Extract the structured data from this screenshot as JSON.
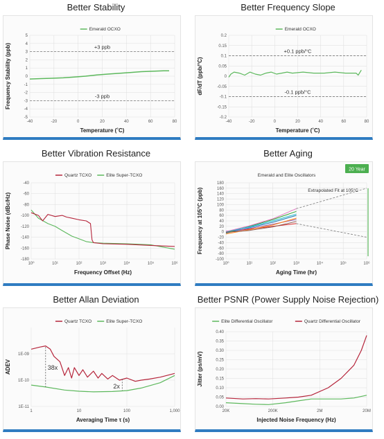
{
  "colors": {
    "green": "#5cb85c",
    "red": "#b5243a",
    "accent": "#2f7cc1",
    "grid": "#dddddd",
    "dash": "#888888"
  },
  "chart_data": [
    {
      "type": "line",
      "title": "Better Stability",
      "xlabel": "Temperature (˚C)",
      "ylabel": "Frequency Stability (ppb)",
      "xlim": [
        -40,
        90
      ],
      "ylim": [
        -5,
        5
      ],
      "xticks": [
        "-40",
        "-20",
        "0",
        "20",
        "40",
        "60",
        "80"
      ],
      "yticks": [
        "-5",
        "-4",
        "-3",
        "-2",
        "-1",
        "0",
        "1",
        "2",
        "3",
        "4",
        "5"
      ],
      "legend": "top-center",
      "series": [
        {
          "name": "Emerald OCXO",
          "x": [
            -40,
            -30,
            -20,
            -10,
            0,
            10,
            20,
            30,
            40,
            50,
            60,
            70,
            80,
            85
          ],
          "y": [
            -0.35,
            -0.3,
            -0.25,
            -0.2,
            -0.1,
            0,
            0.15,
            0.25,
            0.35,
            0.45,
            0.55,
            0.6,
            0.65,
            0.65
          ]
        }
      ],
      "annotations": [
        "+3 ppb",
        "-3 ppb"
      ]
    },
    {
      "type": "line",
      "title": "Better Frequency Slope",
      "xlabel": "Temperature (˚C)",
      "ylabel": "dF/dT (ppb/°C)",
      "xlim": [
        -40,
        90
      ],
      "ylim": [
        -0.2,
        0.2
      ],
      "xticks": [
        "-40",
        "-20",
        "0",
        "20",
        "40",
        "60",
        "80"
      ],
      "yticks": [
        "-0.2",
        "-0.15",
        "-0.1",
        "-0.05",
        "0",
        "0.05",
        "0.1",
        "0.15",
        "0.2"
      ],
      "legend": "top-center",
      "series": [
        {
          "name": "Emerald OCXO",
          "x": [
            -40,
            -38,
            -35,
            -30,
            -25,
            -20,
            -15,
            -10,
            -5,
            0,
            5,
            10,
            15,
            20,
            30,
            40,
            50,
            60,
            70,
            80,
            82,
            85
          ],
          "y": [
            -0.005,
            0.01,
            0.02,
            0.015,
            0.005,
            0.02,
            0.01,
            0.005,
            0.015,
            0.02,
            0.01,
            0.015,
            0.02,
            0.015,
            0.02,
            0.015,
            0.015,
            0.02,
            0.015,
            0.015,
            0.005,
            0.03
          ]
        }
      ],
      "annotations": [
        "+0.1 ppb/°C",
        "-0.1 ppb/°C"
      ]
    },
    {
      "type": "line",
      "title": "Better Vibration Resistance",
      "xlabel": "Frequency Offset (Hz)",
      "ylabel": "Phase Noise (dBc/Hz)",
      "xlim": [
        1,
        1000000
      ],
      "xscale": "log",
      "ylim": [
        -180,
        -40
      ],
      "xticks": [
        "10⁰",
        "10¹",
        "10²",
        "10³",
        "10⁴",
        "10⁵",
        "10⁶"
      ],
      "yticks": [
        "-40",
        "-60",
        "-80",
        "-100",
        "-120",
        "-140",
        "-160",
        "-180"
      ],
      "legend": "top",
      "series": [
        {
          "name": "Quartz TCXO",
          "x": [
            1,
            2,
            3,
            5,
            10,
            20,
            30,
            50,
            100,
            200,
            300,
            350,
            400,
            1000,
            10000,
            100000,
            1000000
          ],
          "y": [
            -95,
            -100,
            -110,
            -98,
            -102,
            -100,
            -103,
            -105,
            -108,
            -110,
            -115,
            -145,
            -150,
            -152,
            -153,
            -155,
            -157
          ]
        },
        {
          "name": "Elite Super-TCXO",
          "x": [
            1,
            2,
            5,
            10,
            20,
            50,
            100,
            200,
            400,
            1000,
            10000,
            100000,
            1000000
          ],
          "y": [
            -90,
            -105,
            -115,
            -120,
            -128,
            -138,
            -143,
            -148,
            -150,
            -151,
            -152,
            -154,
            -162
          ]
        }
      ]
    },
    {
      "type": "line",
      "title": "Better Aging",
      "subtitle": "Emerald and Elite Oscillators",
      "xlabel": "Aging Time (hr)",
      "ylabel": "Frequency at 105°C (ppb)",
      "xlim": [
        1,
        1000000
      ],
      "xscale": "log",
      "ylim": [
        -100,
        180
      ],
      "xticks": [
        "10⁰",
        "10¹",
        "10²",
        "10³",
        "10⁴",
        "10⁵",
        "10⁶"
      ],
      "yticks": [
        "180",
        "160",
        "140",
        "120",
        "100",
        "80",
        "60",
        "40",
        "20",
        "0",
        "-20",
        "-40",
        "-60",
        "-80",
        "-100"
      ],
      "badge": "20 Year",
      "annotations": [
        "Extrapolated Fit at 105°C"
      ],
      "series": [
        {
          "x": [
            1,
            10,
            100,
            1000
          ],
          "y": [
            0,
            10,
            20,
            30
          ]
        },
        {
          "x": [
            1,
            10,
            100,
            1000
          ],
          "y": [
            -5,
            15,
            35,
            60
          ]
        },
        {
          "x": [
            1,
            10,
            100,
            1000
          ],
          "y": [
            -3,
            20,
            45,
            75
          ]
        },
        {
          "x": [
            1,
            10,
            100,
            1000
          ],
          "y": [
            2,
            12,
            28,
            45
          ]
        },
        {
          "x": [
            1,
            10,
            100,
            1000
          ],
          "y": [
            -8,
            8,
            25,
            50
          ]
        },
        {
          "x": [
            1,
            10,
            100,
            1000
          ],
          "y": [
            0,
            18,
            40,
            65
          ]
        },
        {
          "x": [
            1,
            10,
            100,
            1000
          ],
          "y": [
            -2,
            5,
            18,
            38
          ]
        },
        {
          "x": [
            1,
            10,
            100,
            1000
          ],
          "y": [
            1,
            22,
            48,
            85
          ]
        }
      ]
    },
    {
      "type": "line",
      "title": "Better Allan Deviation",
      "xlabel": "Averaging Time τ (s)",
      "ylabel": "ADEV",
      "xlim": [
        1,
        1000
      ],
      "xscale": "log",
      "ylim": [
        1e-11,
        1e-08
      ],
      "yscale": "log",
      "xticks": [
        "1",
        "10",
        "100",
        "1,000"
      ],
      "yticks": [
        "1E-09",
        "1E-10",
        "1E-11"
      ],
      "legend": "top",
      "annotations": [
        "38x",
        "2x"
      ],
      "series": [
        {
          "name": "Quartz TCXO",
          "x": [
            1,
            1.5,
            2,
            2.5,
            3,
            4,
            5,
            6,
            7,
            8,
            10,
            12,
            15,
            20,
            25,
            30,
            40,
            50,
            70,
            100,
            150,
            200,
            300,
            500,
            1000
          ],
          "y": [
            1.5e-09,
            1.8e-09,
            2e-09,
            1.5e-09,
            8e-10,
            5e-10,
            1.5e-10,
            3e-10,
            1.2e-10,
            3e-10,
            1.5e-10,
            2.5e-10,
            1.3e-10,
            2.2e-10,
            1.2e-10,
            1.8e-10,
            1.1e-10,
            1.5e-10,
            1e-10,
            1.2e-10,
            9e-11,
            1e-10,
            1.1e-10,
            1.3e-10,
            1.8e-10
          ]
        },
        {
          "name": "Elite Super-TCXO",
          "x": [
            1,
            2,
            5,
            10,
            20,
            50,
            100,
            200,
            500,
            1000
          ],
          "y": [
            6.5e-11,
            5.5e-11,
            4.2e-11,
            3.8e-11,
            3.6e-11,
            3.7e-11,
            4e-11,
            5e-11,
            8e-11,
            1.5e-10
          ]
        }
      ]
    },
    {
      "type": "line",
      "title": "Better PSNR (Power Supply Noise Rejection)",
      "xlabel": "Injected Noise Frequency (Hz)",
      "ylabel": "Jitter (ps/mV)",
      "xlim": [
        20000,
        40000000
      ],
      "xscale": "log",
      "ylim": [
        0,
        0.4
      ],
      "xticks": [
        "20K",
        "200K",
        "2M",
        "20M"
      ],
      "yticks": [
        "0.40",
        "0.35",
        "0.30",
        "0.25",
        "0.20",
        "0.15",
        "0.10",
        "0.05",
        "0.00"
      ],
      "legend": "top",
      "series": [
        {
          "name": "Elite Differential Oscillator",
          "x": [
            20000,
            50000,
            100000,
            200000,
            500000,
            1000000,
            2000000,
            5000000,
            10000000,
            20000000,
            40000000
          ],
          "y": [
            0.02,
            0.015,
            0.012,
            0.01,
            0.02,
            0.03,
            0.04,
            0.04,
            0.04,
            0.045,
            0.06
          ]
        },
        {
          "name": "Quartz Differential Oscillator",
          "x": [
            20000,
            50000,
            100000,
            200000,
            500000,
            1000000,
            2000000,
            5000000,
            10000000,
            20000000,
            30000000,
            40000000
          ],
          "y": [
            0.045,
            0.04,
            0.042,
            0.04,
            0.045,
            0.05,
            0.06,
            0.1,
            0.15,
            0.22,
            0.3,
            0.38
          ]
        }
      ]
    }
  ]
}
